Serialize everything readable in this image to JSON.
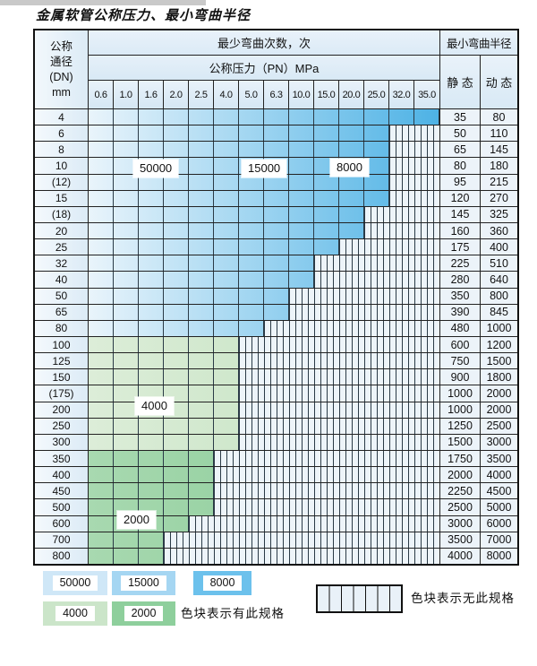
{
  "page": {
    "title": "金属软管公称压力、最小弯曲半径"
  },
  "table": {
    "corner_text": "公称\n通径\n(DN)\nmm",
    "cycles_header": "最少弯曲次数，次",
    "pressure_header": "公称压力（PN）MPa",
    "pressure_cols": [
      "0.6",
      "1.0",
      "1.6",
      "2.0",
      "2.5",
      "4.0",
      "5.0",
      "6.3",
      "10.0",
      "15.0",
      "20.0",
      "25.0",
      "32.0",
      "35.0"
    ],
    "radius_header": "最小弯曲半径",
    "static_label": "静 态",
    "dynamic_label": "动 态",
    "zone_labels": [
      "50000",
      "15000",
      "8000",
      "4000",
      "2000"
    ],
    "rows": [
      {
        "dn": "4",
        "zone": "blue",
        "max_pn": "35.0",
        "static": "35",
        "dynamic": "80"
      },
      {
        "dn": "6",
        "zone": "blue",
        "max_pn": "25.0",
        "static": "50",
        "dynamic": "110"
      },
      {
        "dn": "8",
        "zone": "blue",
        "max_pn": "25.0",
        "static": "65",
        "dynamic": "145"
      },
      {
        "dn": "10",
        "zone": "blue",
        "max_pn": "25.0",
        "static": "80",
        "dynamic": "180"
      },
      {
        "dn": "(12)",
        "zone": "blue",
        "max_pn": "25.0",
        "static": "95",
        "dynamic": "215"
      },
      {
        "dn": "15",
        "zone": "blue",
        "max_pn": "25.0",
        "static": "120",
        "dynamic": "270"
      },
      {
        "dn": "(18)",
        "zone": "blue",
        "max_pn": "20.0",
        "static": "145",
        "dynamic": "325"
      },
      {
        "dn": "20",
        "zone": "blue",
        "max_pn": "20.0",
        "static": "160",
        "dynamic": "360"
      },
      {
        "dn": "25",
        "zone": "blue",
        "max_pn": "15.0",
        "static": "175",
        "dynamic": "400"
      },
      {
        "dn": "32",
        "zone": "blue",
        "max_pn": "10.0",
        "static": "225",
        "dynamic": "510"
      },
      {
        "dn": "40",
        "zone": "blue",
        "max_pn": "10.0",
        "static": "280",
        "dynamic": "640"
      },
      {
        "dn": "50",
        "zone": "blue",
        "max_pn": "6.3",
        "static": "350",
        "dynamic": "800"
      },
      {
        "dn": "65",
        "zone": "blue",
        "max_pn": "6.3",
        "static": "390",
        "dynamic": "845"
      },
      {
        "dn": "80",
        "zone": "blue",
        "max_pn": "5.0",
        "static": "480",
        "dynamic": "1000"
      },
      {
        "dn": "100",
        "zone": "green-4000",
        "max_pn": "4.0",
        "static": "600",
        "dynamic": "1200"
      },
      {
        "dn": "125",
        "zone": "green-4000",
        "max_pn": "4.0",
        "static": "750",
        "dynamic": "1500"
      },
      {
        "dn": "150",
        "zone": "green-4000",
        "max_pn": "4.0",
        "static": "900",
        "dynamic": "1800"
      },
      {
        "dn": "(175)",
        "zone": "green-4000",
        "max_pn": "4.0",
        "static": "1000",
        "dynamic": "2000"
      },
      {
        "dn": "200",
        "zone": "green-4000",
        "max_pn": "4.0",
        "static": "1000",
        "dynamic": "2000"
      },
      {
        "dn": "250",
        "zone": "green-4000",
        "max_pn": "4.0",
        "static": "1250",
        "dynamic": "2500"
      },
      {
        "dn": "300",
        "zone": "green-4000",
        "max_pn": "4.0",
        "static": "1500",
        "dynamic": "3000"
      },
      {
        "dn": "350",
        "zone": "green-2000",
        "max_pn": "2.5",
        "static": "1750",
        "dynamic": "3500"
      },
      {
        "dn": "400",
        "zone": "green-2000",
        "max_pn": "2.5",
        "static": "2000",
        "dynamic": "4000"
      },
      {
        "dn": "450",
        "zone": "green-2000",
        "max_pn": "2.5",
        "static": "2250",
        "dynamic": "4500"
      },
      {
        "dn": "500",
        "zone": "green-2000",
        "max_pn": "2.5",
        "static": "2500",
        "dynamic": "5000"
      },
      {
        "dn": "600",
        "zone": "green-2000",
        "max_pn": "2.0",
        "static": "3000",
        "dynamic": "6000"
      },
      {
        "dn": "700",
        "zone": "green-2000",
        "max_pn": "1.6",
        "static": "3500",
        "dynamic": "7000"
      },
      {
        "dn": "800",
        "zone": "green-2000",
        "max_pn": "1.6",
        "static": "4000",
        "dynamic": "8000"
      }
    ]
  },
  "legend": {
    "items": [
      {
        "label": "50000",
        "color": "#cfe7f7"
      },
      {
        "label": "15000",
        "color": "#a5d6f2"
      },
      {
        "label": "8000",
        "color": "#6cc1ec"
      },
      {
        "label": "4000",
        "color": "#cbe5c9"
      },
      {
        "label": "2000",
        "color": "#8ecf9c"
      }
    ],
    "has_spec_text": "色块表示有此规格",
    "no_spec_text": "色块表示无此规格"
  },
  "colors": {
    "blue_gradient_start": "#e9f4fb",
    "blue_gradient_end": "#4db2e5",
    "green_4000": "#cde6cb",
    "green_2000": "#8ecf9c",
    "hatch_bg": "#edf4f9",
    "grid_line": "#222222"
  }
}
